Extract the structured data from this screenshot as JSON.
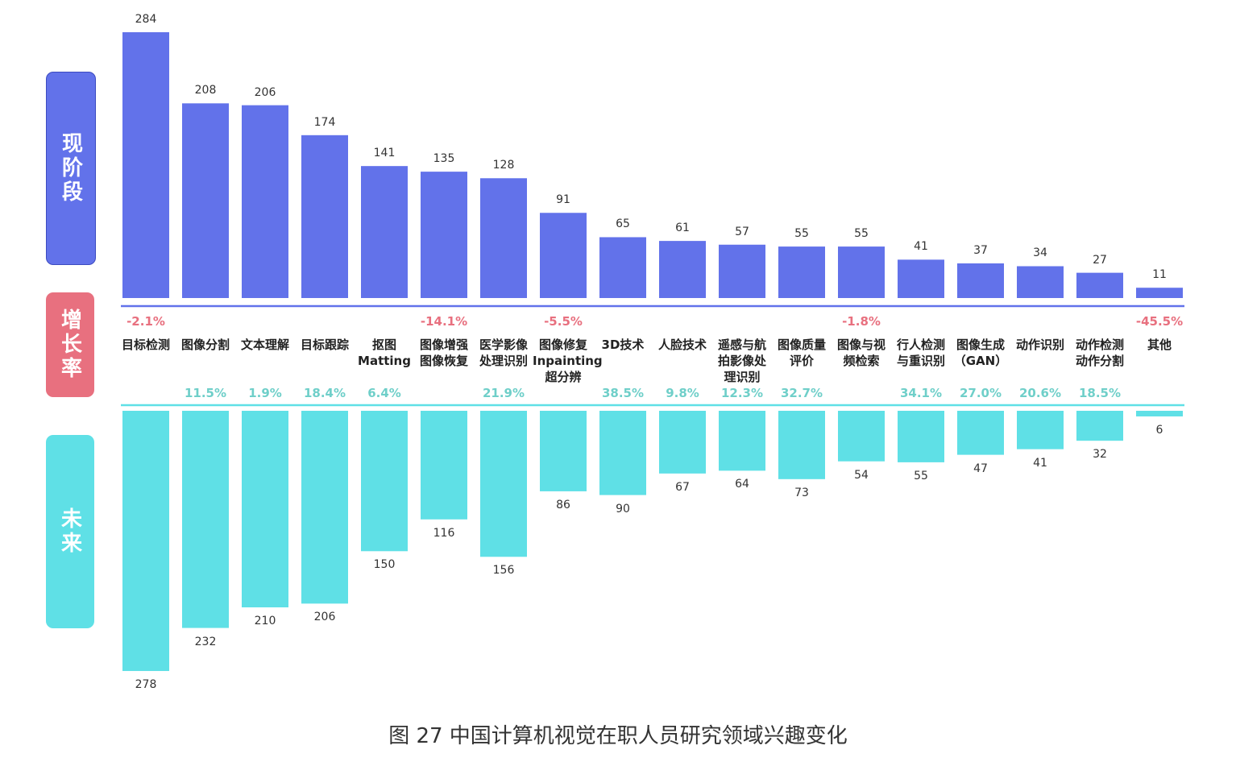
{
  "chart_data": {
    "type": "diverging-bar",
    "title": "图 27 中国计算机视觉在职人员研究领域兴趣变化",
    "categories": [
      "目标检测",
      "图像分割",
      "文本理解",
      "目标跟踪",
      "抠图\nMatting",
      "图像增强\n图像恢复",
      "医学影像\n处理识别",
      "图像修复\nInpainting\n超分辨",
      "3D技术",
      "人脸技术",
      "遥感与航\n拍影像处\n理识别",
      "图像质量\n评价",
      "图像与视\n频检索",
      "行人检测\n与重识别",
      "图像生成\n（GAN）",
      "动作识别",
      "动作检测\n动作分割",
      "其他"
    ],
    "series": [
      {
        "name": "现阶段",
        "color": "#6272ea",
        "values": [
          284,
          208,
          206,
          174,
          141,
          135,
          128,
          91,
          65,
          61,
          57,
          55,
          55,
          41,
          37,
          34,
          27,
          11
        ]
      },
      {
        "name": "未来",
        "color": "#5fe0e6",
        "values": [
          278,
          232,
          210,
          206,
          150,
          116,
          156,
          86,
          90,
          67,
          64,
          73,
          54,
          55,
          47,
          41,
          32,
          6
        ]
      }
    ],
    "growth": {
      "name": "增长率",
      "color": "#e8707f",
      "positive_color": "#6fcfc9",
      "negative_color": "#e8707f",
      "values": [
        -2.1,
        11.5,
        1.9,
        18.4,
        6.4,
        -14.1,
        21.9,
        -5.5,
        38.5,
        9.8,
        12.3,
        32.7,
        -1.8,
        34.1,
        27.0,
        20.6,
        18.5,
        -45.5
      ],
      "value_labels": [
        "-2.1%",
        "11.5%",
        "1.9%",
        "18.4%",
        "6.4%",
        "-14.1%",
        "21.9%",
        "-5.5%",
        "38.5%",
        "9.8%",
        "12.3%",
        "32.7%",
        "-1.8%",
        "34.1%",
        "27.0%",
        "20.6%",
        "18.5%",
        "-45.5%"
      ]
    }
  }
}
